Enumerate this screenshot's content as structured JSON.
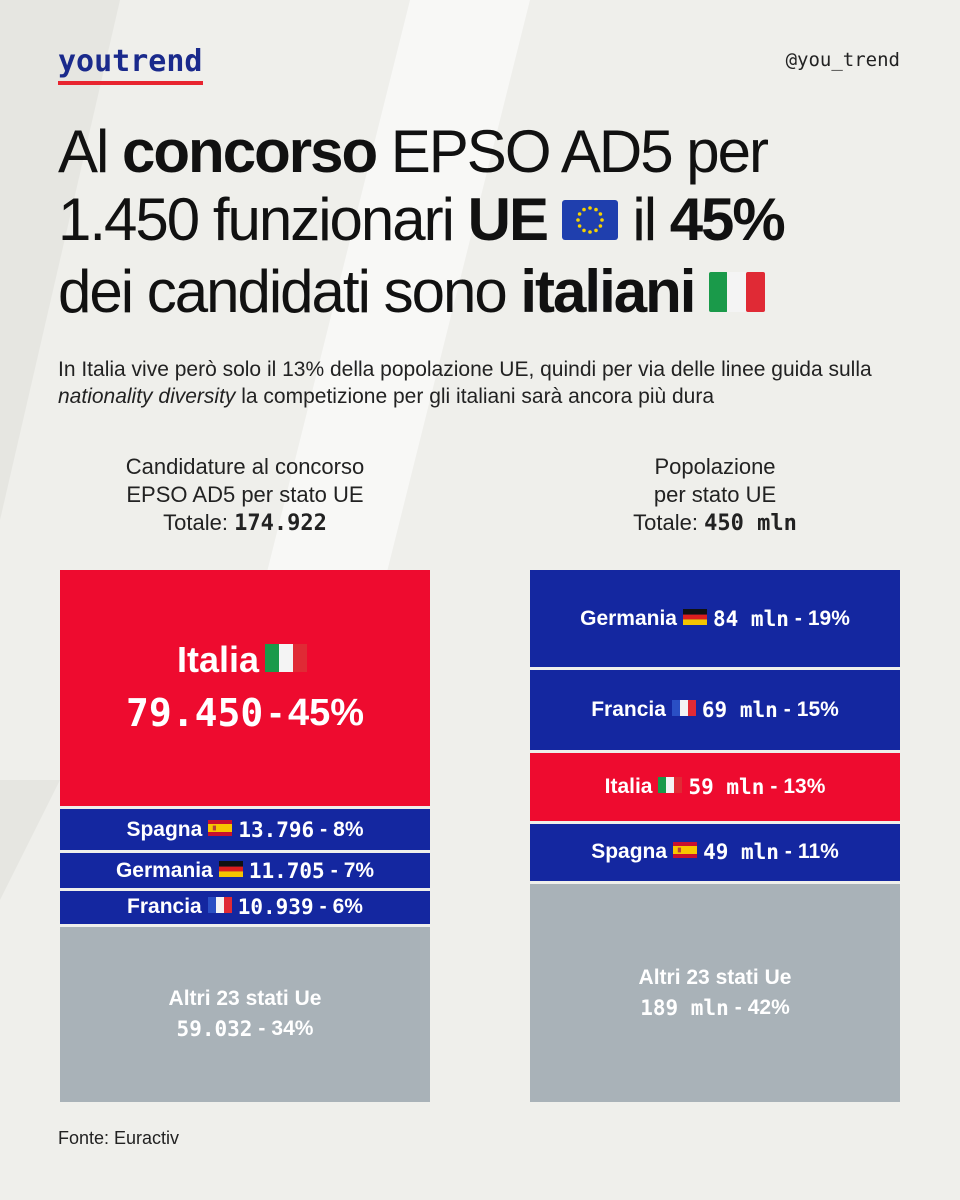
{
  "brand": {
    "logo": "youtrend",
    "handle": "@you_trend"
  },
  "headline": {
    "l1_a": "Al ",
    "l1_b": "concorso",
    "l1_c": " EPSO AD5 per",
    "l2_a": "1.450 funzionari ",
    "l2_b": "UE",
    "l2_c": " il ",
    "l2_d": "45%",
    "l3_a": "dei candidati sono ",
    "l3_b": "italiani"
  },
  "subtitle": {
    "part1": "In Italia vive però solo il 13% della popolazione UE, quindi per via delle linee guida sulla ",
    "italic": "nationality diversity",
    "part2": " la competizione per gli italiani sarà ancora più dura"
  },
  "columns": {
    "left": {
      "line1": "Candidature al concorso",
      "line2": "EPSO AD5 per stato UE",
      "total_label": "Totale:",
      "total_value": "174.922"
    },
    "right": {
      "line1": "Popolazione",
      "line2": "per stato UE",
      "total_label": "Totale:",
      "total_value": "450 mln"
    }
  },
  "colors": {
    "red": "#ee0b2f",
    "blue": "#1427a0",
    "grey": "#a9b2b8",
    "logo": "#1a2a8c"
  },
  "chart_data": [
    {
      "type": "bar",
      "title": "Candidature al concorso EPSO AD5 per stato UE",
      "total": 174922,
      "categories": [
        "Italia",
        "Spagna",
        "Germania",
        "Francia",
        "Altri 23 stati Ue"
      ],
      "values": [
        79450,
        13796,
        11705,
        10939,
        59032
      ],
      "value_labels": [
        "79.450",
        "13.796",
        "11.705",
        "10.939",
        "59.032"
      ],
      "percent_labels": [
        "45%",
        "8%",
        "7%",
        "6%",
        "34%"
      ],
      "flags": [
        "it-flag",
        "es-flag",
        "de-flag",
        "fr-flag",
        ""
      ]
    },
    {
      "type": "bar",
      "title": "Popolazione per stato UE",
      "total_mln": 450,
      "categories": [
        "Germania",
        "Francia",
        "Italia",
        "Spagna",
        "Altri 23 stati Ue"
      ],
      "values": [
        84,
        69,
        59,
        49,
        189
      ],
      "value_labels": [
        "84 mln",
        "69 mln",
        "59 mln",
        "49 mln",
        "189 mln"
      ],
      "percent_labels": [
        "19%",
        "15%",
        "13%",
        "11%",
        "42%"
      ],
      "flags": [
        "de-flag",
        "fr-flag",
        "it-flag",
        "es-flag",
        ""
      ]
    }
  ],
  "source": "Fonte: Euractiv"
}
